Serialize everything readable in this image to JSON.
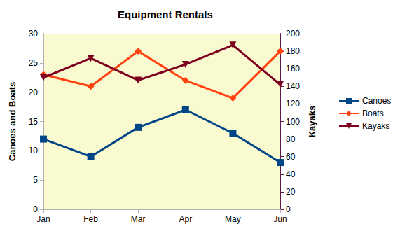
{
  "chart_data": {
    "type": "line",
    "title": "Equipment Rentals",
    "y_label": "Canoes and Boats",
    "y2_label": "Kayaks",
    "categories": [
      "Jan",
      "Feb",
      "Mar",
      "Apr",
      "May",
      "Jun"
    ],
    "series": [
      {
        "name": "Canoes",
        "color": "#004586",
        "marker": "square",
        "values": [
          12,
          9,
          14,
          17,
          13,
          8
        ]
      },
      {
        "name": "Boats",
        "color": "#ff420e",
        "marker": "diamond",
        "values": [
          23,
          21,
          27,
          22,
          19,
          27
        ]
      },
      {
        "name": "Kayaks",
        "color": "#7e0021",
        "marker": "triangle-down",
        "axis": "y2",
        "values": [
          150,
          172,
          147,
          165,
          187,
          142
        ]
      }
    ],
    "ylim": [
      0,
      30
    ],
    "yticks": [
      0,
      5,
      10,
      15,
      20,
      25,
      30
    ],
    "y2lim": [
      0,
      200
    ],
    "y2ticks": [
      0,
      20,
      40,
      60,
      80,
      100,
      120,
      140,
      160,
      180,
      200
    ],
    "grid": false,
    "legend": "right"
  }
}
